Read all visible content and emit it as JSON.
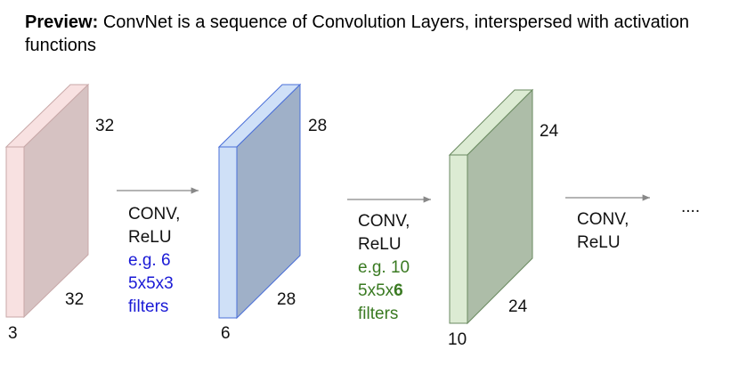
{
  "title": {
    "bold": "Preview:",
    "text": " ConvNet is a sequence of Convolution Layers, interspersed with activation functions"
  },
  "volumes": [
    {
      "width_label": "32",
      "height_label": "32",
      "depth_label": "3",
      "front_color": "#f8e1e1",
      "side_color": "#d6c2c2",
      "stroke": "#c8a8a8"
    },
    {
      "width_label": "28",
      "height_label": "28",
      "depth_label": "6",
      "front_color": "#cfe0f7",
      "side_color": "#9fb0c8",
      "stroke": "#4a6fd8"
    },
    {
      "width_label": "24",
      "height_label": "24",
      "depth_label": "10",
      "front_color": "#dcebd3",
      "side_color": "#adbda8",
      "stroke": "#6a8a60"
    }
  ],
  "operations": [
    {
      "line1": "CONV,",
      "line2": "ReLU",
      "ex1": "e.g. 6",
      "ex2": "5x5x3",
      "ex3": "filters",
      "ex_color": "#1a1ad6",
      "ex2_bold_suffix": ""
    },
    {
      "line1": "CONV,",
      "line2": "ReLU",
      "ex1": "e.g. 10",
      "ex2": "5x5x",
      "ex3": "filters",
      "ex_color": "#3a7a22",
      "ex2_bold_suffix": "6"
    },
    {
      "line1": "CONV,",
      "line2": "ReLU"
    }
  ],
  "ellipsis": "...."
}
